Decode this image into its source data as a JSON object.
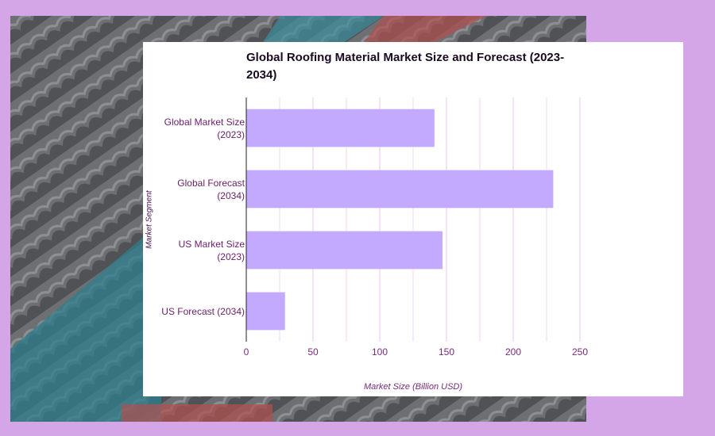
{
  "chart_data": {
    "type": "bar",
    "orientation": "horizontal",
    "title": "Global Roofing Material Market Size and Forecast (2023-2034)",
    "x_label": "Market Size (Billion USD)",
    "y_label": "Market Segment",
    "categories": [
      "Global Market Size (2023)",
      "Global Forecast (2034)",
      "US Market Size (2023)",
      "US Forecast (2034)"
    ],
    "values": [
      141,
      230,
      147,
      29
    ],
    "color": "#c4aaff",
    "xlim": [
      0,
      250
    ],
    "xticks": [
      0,
      50,
      100,
      150,
      200,
      250
    ],
    "xticks_minor": [
      25,
      75,
      125,
      175,
      225
    ],
    "grid": true
  }
}
